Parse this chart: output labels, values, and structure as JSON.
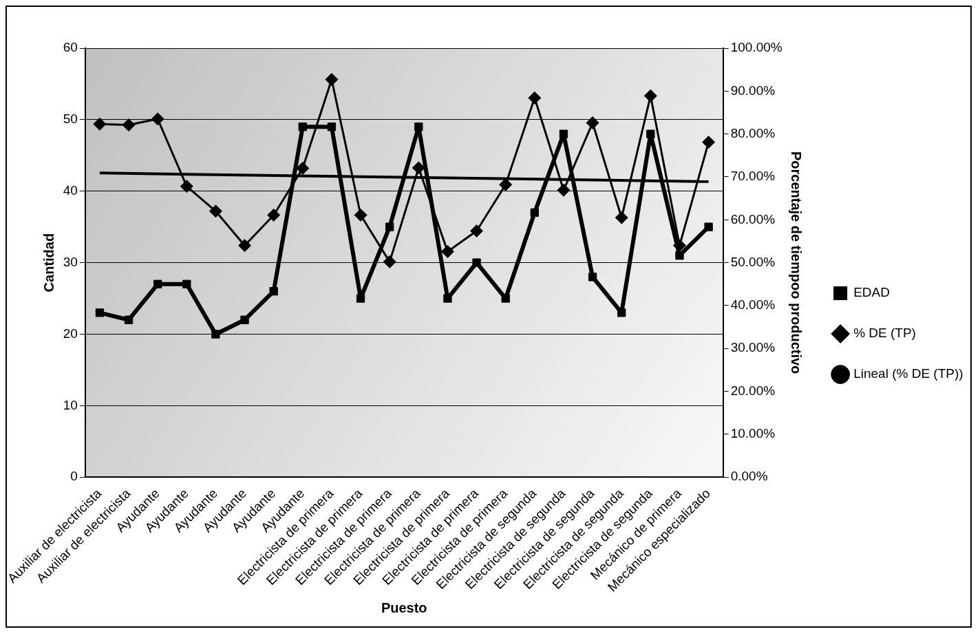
{
  "chart_data": {
    "type": "line",
    "xlabel": "Puesto",
    "ylabel": "Cantidad",
    "y2label": "Porcentaje de tiempoo productivo",
    "categories": [
      "Auxiliar de electricista",
      "Auxiliar de electricista",
      "Ayudante",
      "Ayudante",
      "Ayudante",
      "Ayudante",
      "Ayudante",
      "Ayudante",
      "Electricista de primera",
      "Electricista de primera",
      "Electricista de primera",
      "Electricista de primera",
      "Electricista de primera",
      "Electricista de primera",
      "Electricista de primera",
      "Electricista de segunda",
      "Electricista de segunda",
      "Electricista de segunda",
      "Electricista de segunda",
      "Electricista de segunda",
      "Mecánico de primera",
      "Mecánico especializado"
    ],
    "series": [
      {
        "name": "EDAD",
        "color": "#000000",
        "marker": "square",
        "values": [
          23,
          22,
          27,
          27,
          20,
          22,
          26,
          49,
          49,
          25,
          35,
          49,
          25,
          30,
          25,
          37,
          48,
          28,
          23,
          48,
          31,
          35
        ]
      },
      {
        "name": "% DE (TP)",
        "color": "#000000",
        "marker": "diamond",
        "axis": "y2",
        "values": [
          82.3,
          82.1,
          83.5,
          67.8,
          62,
          54,
          61.1,
          72,
          92.7,
          61.1,
          50.2,
          72.1,
          52.6,
          57.4,
          68.2,
          88.4,
          66.9,
          82.6,
          60.5,
          88.9,
          54,
          78.1
        ]
      },
      {
        "name": "Lineal (% DE (TP))",
        "color": "#000000",
        "marker": "none",
        "axis": "y2",
        "values": [
          70.9,
          null,
          null,
          null,
          null,
          null,
          null,
          null,
          null,
          null,
          null,
          null,
          null,
          null,
          null,
          null,
          null,
          null,
          null,
          null,
          null,
          68.9
        ]
      }
    ],
    "ylim": [
      0,
      60
    ],
    "yticks": [
      0,
      10,
      20,
      30,
      40,
      50,
      60
    ],
    "y2lim": [
      0,
      100
    ],
    "y2ticks": [
      {
        "value": 0,
        "label": "0.00%"
      },
      {
        "value": 10,
        "label": "10.00%"
      },
      {
        "value": 20,
        "label": "20.00%"
      },
      {
        "value": 30,
        "label": "30.00%"
      },
      {
        "value": 40,
        "label": "40.00%"
      },
      {
        "value": 50,
        "label": "50.00%"
      },
      {
        "value": 60,
        "label": "60.00%"
      },
      {
        "value": 70,
        "label": "70.00%"
      },
      {
        "value": 80,
        "label": "80.00%"
      },
      {
        "value": 90,
        "label": "90.00%"
      },
      {
        "value": 100,
        "label": "100.00%"
      }
    ],
    "grid": "y",
    "legend": "right"
  }
}
